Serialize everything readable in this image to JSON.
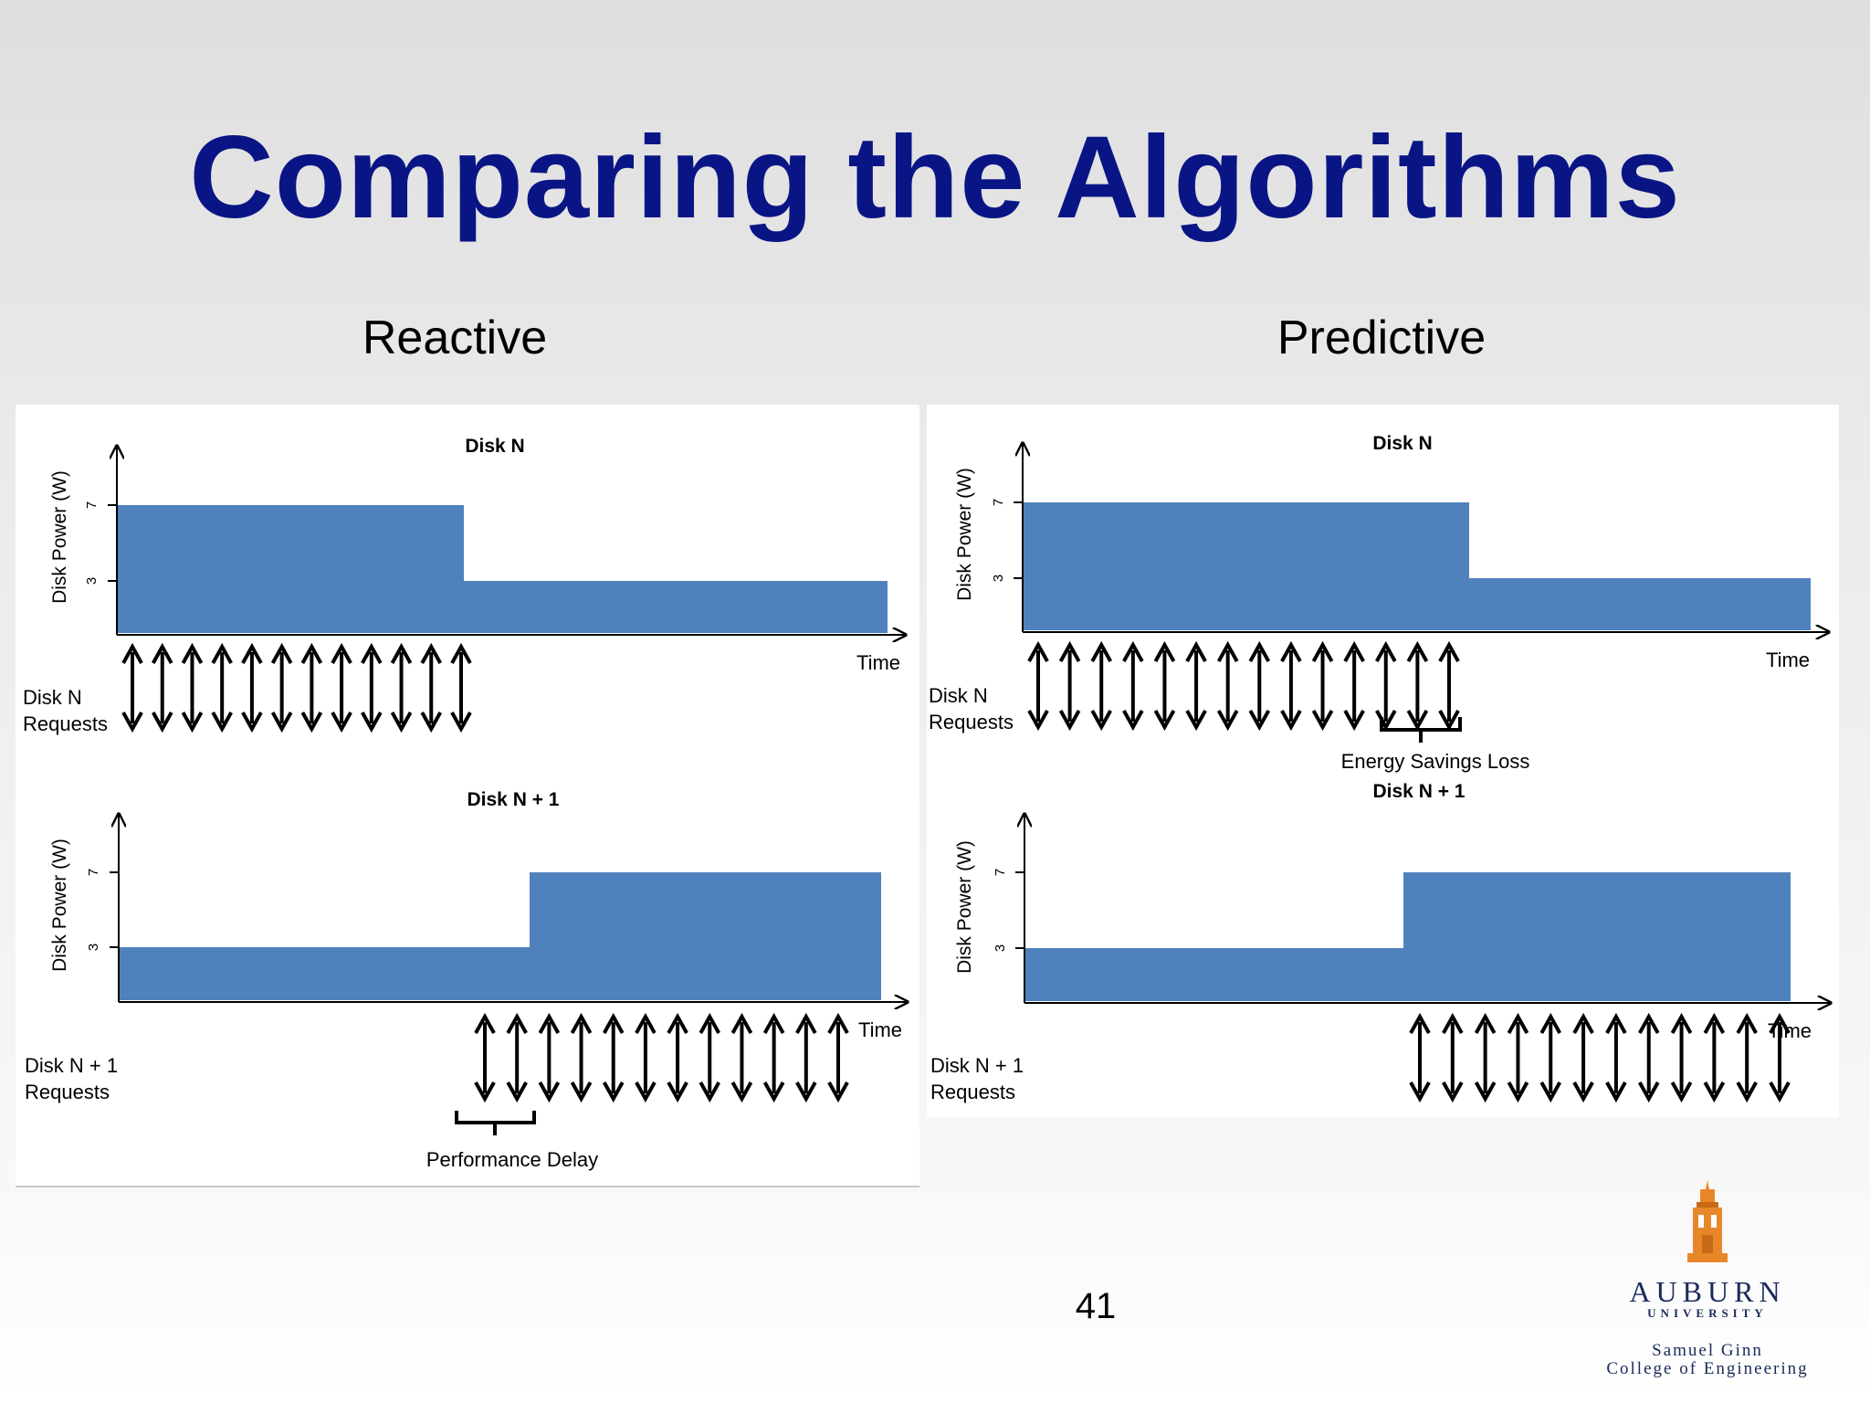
{
  "slide": {
    "title": "Comparing the Algorithms",
    "page_number": "41"
  },
  "columns": {
    "reactive": {
      "heading": "Reactive"
    },
    "predictive": {
      "heading": "Predictive"
    }
  },
  "colors": {
    "title": "#0a1585",
    "bar_fill": "#4f81bd",
    "axis": "#000000",
    "logo_orange": "#e8872a",
    "logo_text": "#1a2a5a"
  },
  "labels": {
    "y_axis": "Disk Power (W)",
    "x_axis": "Time",
    "tick_high": "7",
    "tick_low": "3"
  },
  "panels": {
    "reactive": {
      "top": {
        "title": "Disk N",
        "requests_label_line1": "Disk N",
        "requests_label_line2": "Requests",
        "request_count": 12,
        "power_steps": [
          7,
          3
        ],
        "annotation": ""
      },
      "bottom": {
        "title": "Disk N + 1",
        "requests_label_line1": "Disk N + 1",
        "requests_label_line2": "Requests",
        "request_count": 12,
        "power_steps": [
          3,
          7
        ],
        "annotation": "Performance Delay"
      }
    },
    "predictive": {
      "top": {
        "title": "Disk N",
        "requests_label_line1": "Disk N",
        "requests_label_line2": "Requests",
        "request_count": 14,
        "power_steps": [
          7,
          3
        ],
        "annotation": "Energy Savings Loss"
      },
      "bottom": {
        "title": "Disk N + 1",
        "requests_label_line1": "Disk N + 1",
        "requests_label_line2": "Requests",
        "request_count": 12,
        "power_steps": [
          3,
          7
        ],
        "annotation": ""
      }
    }
  },
  "logo": {
    "name": "AUBURN",
    "line2": "UNIVERSITY",
    "line3": "Samuel Ginn",
    "line4": "College of Engineering",
    "icon": "tower-icon"
  }
}
